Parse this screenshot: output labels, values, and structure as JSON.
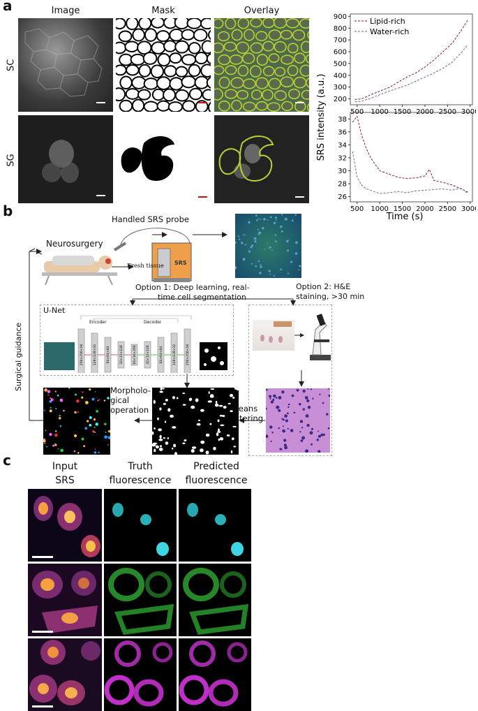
{
  "panel_a": {
    "letter": "a",
    "col_headers": [
      "Image",
      "Mask",
      "Overlay"
    ],
    "row_labels": [
      "SC",
      "SG"
    ]
  },
  "panel_b": {
    "letter": "b",
    "neurosurgery": "Neurosurgery",
    "probe": "Handled SRS probe",
    "fresh_tissue": "Fresh tissue",
    "srs_box": "SRS",
    "option1_line1": "Option 1: Deep learning, real-",
    "option1_line2": "time cell segmentation",
    "option2_line1": "Option 2: H&E",
    "option2_line2": "staining, >30 min",
    "unet": "U-Net",
    "encoder": "Encoder",
    "decoder": "Decoder",
    "unet_layers": [
      "256×256×16",
      "128×128×32",
      "64×64×64",
      "32×32×128",
      "16×16×256",
      "32×32×128",
      "64×64×64",
      "128×128×32",
      "256×256×16"
    ],
    "surgical_guidance": "Surgical guidance",
    "morph_line1": "Morpholo-",
    "morph_line2": "gical",
    "morph_line3": "operation",
    "kmeans_line1": "K-means",
    "kmeans_line2": "clustering"
  },
  "panel_c": {
    "letter": "c",
    "col1_line1": "Input",
    "col1_line2": "SRS",
    "col2_line1": "Truth",
    "col2_line2": "fluorescence",
    "col3_line1": "Predicted",
    "col3_line2": "fluorescence"
  },
  "colors": {
    "lipid": "#8b1a2b",
    "water": "#6a6a9a",
    "scale_white": "#ffffff",
    "scale_red": "#cc1111",
    "overlay_green": "#b5d334"
  },
  "chart_data": [
    {
      "type": "line",
      "xlabel": "",
      "ylabel": "",
      "xlim": [
        350,
        3050
      ],
      "ylim": [
        150,
        920
      ],
      "yticks": [
        200,
        300,
        400,
        500,
        600,
        700,
        800,
        900
      ],
      "xticks": [
        500,
        1000,
        1500,
        2000,
        2500,
        3000
      ],
      "legend_position": "top-left",
      "series": [
        {
          "name": "Lipid-rich",
          "x": [
            450,
            600,
            800,
            1000,
            1200,
            1400,
            1600,
            1800,
            2000,
            2200,
            2400,
            2600,
            2800,
            2950
          ],
          "values": [
            195,
            200,
            235,
            265,
            295,
            340,
            385,
            420,
            470,
            530,
            600,
            670,
            780,
            870
          ]
        },
        {
          "name": "Water-rich",
          "x": [
            450,
            600,
            800,
            1000,
            1200,
            1400,
            1600,
            1800,
            2000,
            2200,
            2400,
            2600,
            2800,
            2950
          ],
          "values": [
            175,
            180,
            205,
            235,
            265,
            290,
            315,
            350,
            385,
            420,
            460,
            510,
            590,
            660
          ]
        }
      ]
    },
    {
      "type": "line",
      "xlabel": "Time (s)",
      "ylabel": "SRS intensity (a.u.)",
      "xlim": [
        350,
        3050
      ],
      "ylim": [
        25.2,
        39
      ],
      "yticks": [
        26,
        28,
        30,
        32,
        34,
        36,
        38
      ],
      "xticks": [
        500,
        1000,
        1500,
        2000,
        2500,
        3000
      ],
      "series": [
        {
          "name": "Lipid-rich",
          "x": [
            400,
            500,
            600,
            700,
            800,
            900,
            1000,
            1200,
            1400,
            1600,
            1800,
            2000,
            2100,
            2200,
            2400,
            2600,
            2800,
            2950
          ],
          "values": [
            37.5,
            38.4,
            35.5,
            33.5,
            32,
            31,
            30,
            29.5,
            29,
            28.8,
            28.9,
            29.2,
            30.2,
            28.5,
            28.2,
            27.8,
            27.2,
            26.7
          ]
        },
        {
          "name": "Water-rich",
          "x": [
            400,
            500,
            600,
            700,
            800,
            900,
            1000,
            1200,
            1400,
            1600,
            1800,
            2000,
            2200,
            2400,
            2600,
            2800,
            2950
          ],
          "values": [
            33,
            29,
            27.8,
            27.2,
            27,
            26.7,
            26.5,
            26.6,
            26.8,
            26.6,
            26.9,
            27.0,
            27.1,
            27.2,
            27.0,
            27.3,
            26.5
          ]
        }
      ]
    }
  ]
}
